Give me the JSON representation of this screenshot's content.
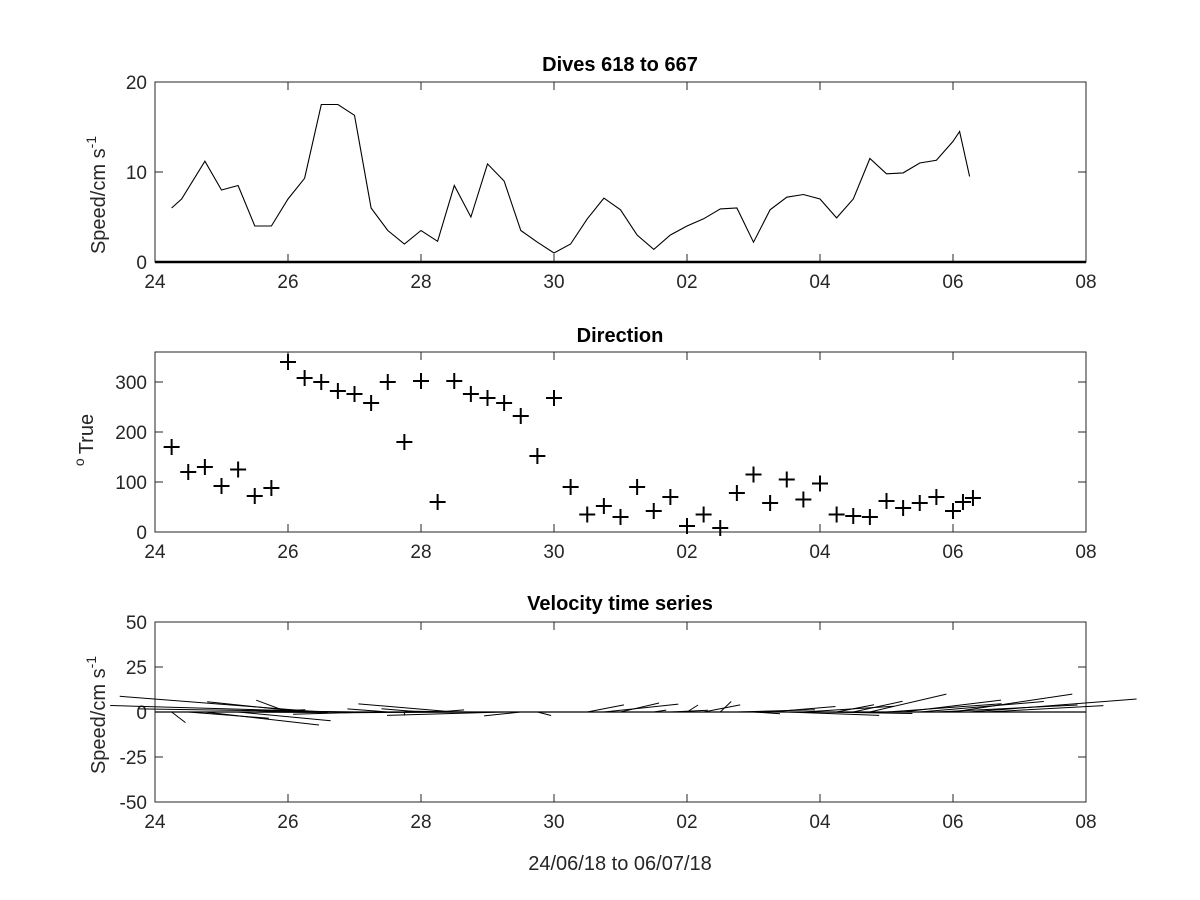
{
  "x_tick_labels": [
    "24",
    "26",
    "28",
    "30",
    "02",
    "04",
    "06",
    "08"
  ],
  "chart_data": [
    {
      "type": "line",
      "title": "Dives 618 to 667",
      "ylabel": "Speed/cm s",
      "ylabel_sup": "-1",
      "xlim": [
        0,
        14
      ],
      "ylim": [
        0,
        20
      ],
      "yticks": [
        0,
        10,
        20
      ],
      "x": [
        0.25,
        0.4,
        0.75,
        1.0,
        1.25,
        1.5,
        1.75,
        2.0,
        2.25,
        2.5,
        2.75,
        3.0,
        3.25,
        3.5,
        3.75,
        4.0,
        4.25,
        4.5,
        4.75,
        5.0,
        5.25,
        5.5,
        5.75,
        6.0,
        6.25,
        6.5,
        6.75,
        7.0,
        7.25,
        7.5,
        7.75,
        8.0,
        8.25,
        8.5,
        8.75,
        9.0,
        9.25,
        9.5,
        9.75,
        10.0,
        10.25,
        10.5,
        10.75,
        11.0,
        11.25,
        11.5,
        11.75,
        12.0,
        12.1,
        12.25
      ],
      "values": [
        6.0,
        7.0,
        11.2,
        8.0,
        8.5,
        4.0,
        4.0,
        7.0,
        9.3,
        17.5,
        17.5,
        16.3,
        6.0,
        3.5,
        2.0,
        3.5,
        2.3,
        8.5,
        5.0,
        10.9,
        9.0,
        3.5,
        2.2,
        1.0,
        2.0,
        4.8,
        7.1,
        5.8,
        3.0,
        1.4,
        3.0,
        4.0,
        4.8,
        5.9,
        6.0,
        2.2,
        5.8,
        7.2,
        7.5,
        7.0,
        4.9,
        7.0,
        11.5,
        9.8,
        9.9,
        11.0,
        11.3,
        13.4,
        14.5,
        9.5
      ]
    },
    {
      "type": "scatter",
      "title": "Direction",
      "ylabel": "True",
      "ylabel_sup": "o",
      "xlim": [
        0,
        14
      ],
      "ylim": [
        0,
        360
      ],
      "yticks": [
        0,
        100,
        200,
        300
      ],
      "marker": "+",
      "x": [
        0.25,
        0.5,
        0.75,
        1.0,
        1.25,
        1.5,
        1.75,
        2.0,
        2.25,
        2.5,
        2.75,
        3.0,
        3.25,
        3.5,
        3.75,
        4.0,
        4.25,
        4.5,
        4.75,
        5.0,
        5.25,
        5.5,
        5.75,
        6.0,
        6.25,
        6.5,
        6.75,
        7.0,
        7.25,
        7.5,
        7.75,
        8.0,
        8.25,
        8.5,
        8.75,
        9.0,
        9.25,
        9.5,
        9.75,
        10.0,
        10.25,
        10.5,
        10.75,
        11.0,
        11.25,
        11.5,
        11.75,
        12.0,
        12.15,
        12.3
      ],
      "values": [
        170,
        120,
        130,
        92,
        125,
        72,
        88,
        340,
        308,
        300,
        282,
        276,
        258,
        300,
        180,
        302,
        60,
        302,
        276,
        268,
        258,
        232,
        152,
        268,
        90,
        35,
        52,
        30,
        90,
        42,
        70,
        12,
        35,
        8,
        78,
        115,
        58,
        105,
        65,
        97,
        35,
        32,
        30,
        62,
        48,
        58,
        70,
        42,
        60,
        68
      ]
    },
    {
      "type": "quiver",
      "title": "Velocity time series",
      "ylabel": "Speed/cm s",
      "ylabel_sup": "-1",
      "xlabel": "24/06/18 to 06/07/18",
      "xlim": [
        0,
        14
      ],
      "ylim": [
        -50,
        50
      ],
      "yticks": [
        -50,
        -25,
        0,
        25,
        50
      ],
      "x": [
        0.25,
        0.5,
        0.75,
        1.0,
        1.25,
        1.5,
        1.75,
        2.0,
        2.25,
        2.5,
        2.75,
        3.0,
        3.25,
        3.5,
        3.75,
        4.0,
        4.25,
        4.5,
        4.75,
        5.0,
        5.25,
        5.5,
        5.75,
        6.0,
        6.25,
        6.5,
        6.75,
        7.0,
        7.25,
        7.5,
        7.75,
        8.0,
        8.25,
        8.5,
        8.75,
        9.0,
        9.25,
        9.5,
        9.75,
        10.0,
        10.25,
        10.5,
        10.75,
        11.0,
        11.25,
        11.5,
        11.75,
        12.0,
        12.25,
        12.5
      ],
      "speed": [
        6.0,
        7.0,
        11.2,
        8.0,
        8.5,
        4.0,
        4.0,
        7.0,
        9.3,
        17.5,
        17.5,
        16.3,
        6.0,
        3.5,
        2.0,
        3.5,
        2.3,
        8.5,
        5.0,
        10.9,
        9.0,
        3.5,
        2.2,
        1.0,
        2.0,
        4.8,
        7.1,
        5.8,
        3.0,
        1.4,
        3.0,
        4.0,
        4.8,
        5.9,
        6.0,
        2.2,
        5.8,
        7.2,
        7.5,
        7.0,
        4.9,
        7.0,
        11.5,
        9.8,
        9.9,
        11.0,
        11.3,
        13.4,
        14.5,
        9.5
      ],
      "direction": [
        170,
        120,
        130,
        92,
        125,
        72,
        88,
        340,
        308,
        300,
        282,
        276,
        258,
        300,
        180,
        302,
        60,
        302,
        276,
        268,
        258,
        232,
        152,
        268,
        90,
        35,
        52,
        30,
        90,
        42,
        70,
        12,
        35,
        8,
        78,
        115,
        58,
        105,
        65,
        97,
        35,
        32,
        30,
        62,
        48,
        58,
        70,
        42,
        60,
        68
      ]
    }
  ]
}
